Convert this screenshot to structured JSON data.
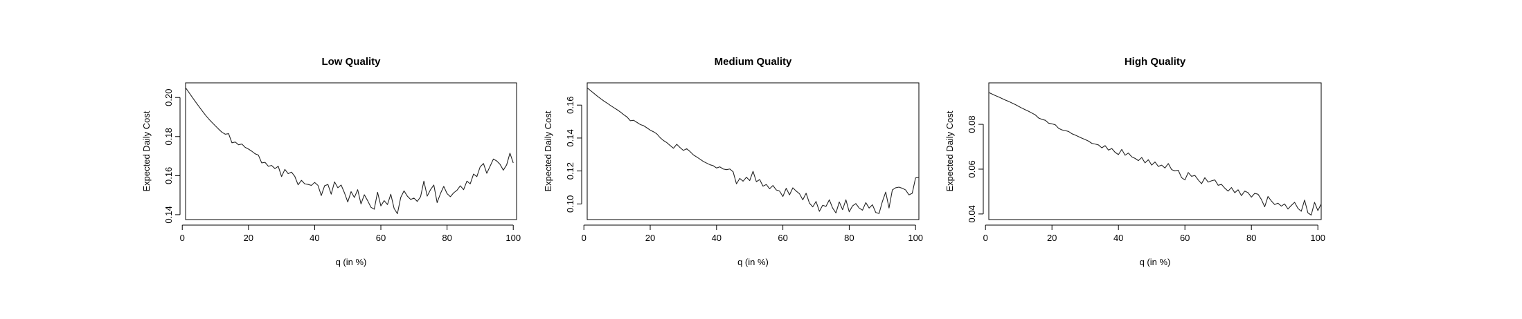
{
  "chart_data": [
    {
      "type": "line",
      "title": "Low Quality",
      "xlabel": "q (in %)",
      "ylabel": "Expected Daily Cost",
      "xlim": [
        1,
        101
      ],
      "ylim": [
        0.1375,
        0.2075
      ],
      "xticks": [
        0,
        20,
        40,
        60,
        80,
        100
      ],
      "yticks": [
        0.14,
        0.16,
        0.18,
        0.2
      ],
      "ytick_labels": [
        "0.14",
        "0.16",
        "0.18",
        "0.20"
      ],
      "x_start": 1,
      "y": [
        0.205,
        0.2026,
        0.2002,
        0.1978,
        0.1955,
        0.1932,
        0.191,
        0.189,
        0.1872,
        0.1855,
        0.1838,
        0.1822,
        0.1812,
        0.1815,
        0.1768,
        0.1772,
        0.1758,
        0.1762,
        0.1745,
        0.1736,
        0.1725,
        0.1712,
        0.1705,
        0.1665,
        0.1668,
        0.1648,
        0.1652,
        0.1636,
        0.1648,
        0.1595,
        0.1632,
        0.161,
        0.1618,
        0.1596,
        0.1553,
        0.1576,
        0.1558,
        0.1555,
        0.155,
        0.1565,
        0.155,
        0.1498,
        0.1548,
        0.1555,
        0.1505,
        0.1568,
        0.1538,
        0.1552,
        0.1512,
        0.1465,
        0.1518,
        0.1488,
        0.1528,
        0.1455,
        0.1502,
        0.1472,
        0.1438,
        0.1428,
        0.1515,
        0.1445,
        0.1472,
        0.1452,
        0.1505,
        0.1432,
        0.1405,
        0.1488,
        0.1522,
        0.1495,
        0.1478,
        0.1485,
        0.1468,
        0.1492,
        0.1572,
        0.1495,
        0.1528,
        0.1552,
        0.1462,
        0.1508,
        0.1545,
        0.1508,
        0.1492,
        0.1512,
        0.1525,
        0.1548,
        0.1528,
        0.1572,
        0.1558,
        0.1608,
        0.1595,
        0.1645,
        0.1662,
        0.1612,
        0.1648,
        0.1685,
        0.1675,
        0.1658,
        0.1628,
        0.1655,
        0.1715,
        0.1665
      ]
    },
    {
      "type": "line",
      "title": "Medium Quality",
      "xlabel": "q (in %)",
      "ylabel": "Expected Daily Cost",
      "xlim": [
        1,
        101
      ],
      "ylim": [
        0.0905,
        0.1735
      ],
      "xticks": [
        0,
        20,
        40,
        60,
        80,
        100
      ],
      "yticks": [
        0.1,
        0.12,
        0.14,
        0.16
      ],
      "ytick_labels": [
        "0.10",
        "0.12",
        "0.14",
        "0.16"
      ],
      "x_start": 1,
      "y": [
        0.1705,
        0.1688,
        0.1672,
        0.1655,
        0.164,
        0.1625,
        0.1612,
        0.1598,
        0.1585,
        0.1572,
        0.1558,
        0.1542,
        0.1528,
        0.1505,
        0.1508,
        0.1495,
        0.1482,
        0.1475,
        0.1462,
        0.1448,
        0.1438,
        0.1425,
        0.1402,
        0.1385,
        0.1372,
        0.1355,
        0.1338,
        0.1362,
        0.1342,
        0.1325,
        0.1335,
        0.1318,
        0.1298,
        0.1285,
        0.1272,
        0.1258,
        0.1248,
        0.1238,
        0.1232,
        0.1218,
        0.1225,
        0.1212,
        0.1208,
        0.1212,
        0.1195,
        0.1122,
        0.1155,
        0.1138,
        0.1162,
        0.1142,
        0.1198,
        0.1135,
        0.1148,
        0.1108,
        0.1118,
        0.1092,
        0.1112,
        0.1085,
        0.1078,
        0.1045,
        0.1095,
        0.1055,
        0.1098,
        0.1078,
        0.1062,
        0.1025,
        0.1065,
        0.1005,
        0.0982,
        0.1015,
        0.0955,
        0.0992,
        0.0985,
        0.1025,
        0.0975,
        0.0945,
        0.1012,
        0.0965,
        0.1025,
        0.0952,
        0.0988,
        0.1002,
        0.0975,
        0.0962,
        0.1008,
        0.0975,
        0.0995,
        0.0948,
        0.0942,
        0.1015,
        0.1072,
        0.0975,
        0.1085,
        0.1098,
        0.1102,
        0.1095,
        0.1085,
        0.1055,
        0.1065,
        0.1158,
        0.1162
      ]
    },
    {
      "type": "line",
      "title": "High Quality",
      "xlabel": "q (in %)",
      "ylabel": "Expected Daily Cost",
      "xlim": [
        1,
        101
      ],
      "ylim": [
        0.0375,
        0.0985
      ],
      "xticks": [
        0,
        20,
        40,
        60,
        80,
        100
      ],
      "yticks": [
        0.04,
        0.06,
        0.08
      ],
      "ytick_labels": [
        "0.04",
        "0.06",
        "0.08"
      ],
      "x_start": 1,
      "y": [
        0.0942,
        0.0935,
        0.0928,
        0.0922,
        0.0915,
        0.0908,
        0.0902,
        0.0895,
        0.0888,
        0.088,
        0.0872,
        0.0865,
        0.0858,
        0.085,
        0.0842,
        0.0828,
        0.0822,
        0.0818,
        0.0805,
        0.0802,
        0.0798,
        0.0782,
        0.0775,
        0.0772,
        0.0768,
        0.0758,
        0.0752,
        0.0745,
        0.0738,
        0.0732,
        0.0725,
        0.0715,
        0.0712,
        0.0708,
        0.0695,
        0.0705,
        0.0685,
        0.0692,
        0.0675,
        0.0665,
        0.0688,
        0.0662,
        0.0672,
        0.0655,
        0.0648,
        0.0638,
        0.0652,
        0.0628,
        0.0642,
        0.0618,
        0.0632,
        0.0612,
        0.0618,
        0.0605,
        0.0625,
        0.0598,
        0.0592,
        0.0595,
        0.0562,
        0.0552,
        0.0585,
        0.0568,
        0.0572,
        0.0552,
        0.0535,
        0.0562,
        0.0542,
        0.0548,
        0.0552,
        0.0528,
        0.0532,
        0.0515,
        0.0502,
        0.0518,
        0.0495,
        0.0508,
        0.0482,
        0.0502,
        0.0495,
        0.0475,
        0.0492,
        0.0488,
        0.0465,
        0.0432,
        0.0478,
        0.0458,
        0.0442,
        0.0448,
        0.0435,
        0.0445,
        0.0422,
        0.0438,
        0.0452,
        0.0425,
        0.0412,
        0.0462,
        0.0405,
        0.0395,
        0.0452,
        0.0415,
        0.0445
      ]
    }
  ]
}
